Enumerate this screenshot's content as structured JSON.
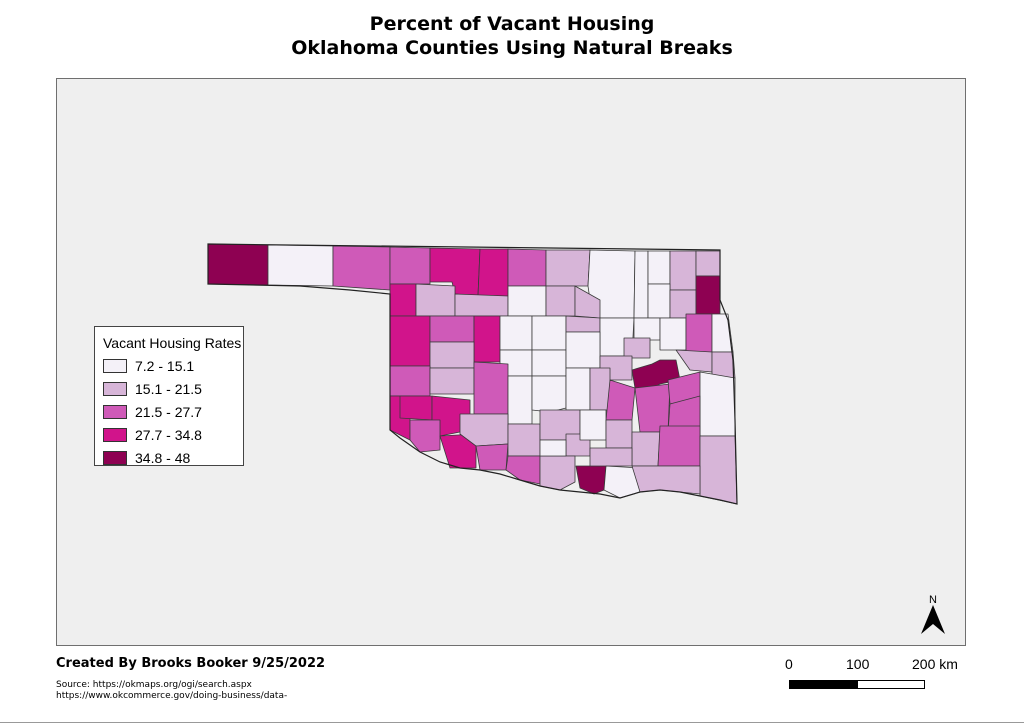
{
  "title": {
    "line1": "Percent of Vacant Housing",
    "line2": "Oklahoma Counties Using Natural Breaks"
  },
  "legend": {
    "title": "Vacant Housing Rates",
    "classes": [
      {
        "label": "7.2 - 15.1",
        "color": "#f4f1f8"
      },
      {
        "label": "15.1 - 21.5",
        "color": "#d7b5d8"
      },
      {
        "label": "21.5 - 27.7",
        "color": "#cf5ab8"
      },
      {
        "label": "27.7 - 34.8",
        "color": "#d1148b"
      },
      {
        "label": "34.8 - 48",
        "color": "#8e0152"
      }
    ]
  },
  "credit": "Created By Brooks Booker 9/25/2022",
  "source": {
    "line1": "Source: https://okmaps.org/ogi/search.aspx",
    "line2": "https://www.okcommerce.gov/doing-business/data-"
  },
  "scale": {
    "labels": [
      "0",
      "100",
      "200 km"
    ]
  },
  "north_arrow": {
    "label": "N",
    "icon": "north-arrow-icon"
  },
  "colors": {
    "background": "#efefef",
    "county_border": "#3a3a3a"
  }
}
